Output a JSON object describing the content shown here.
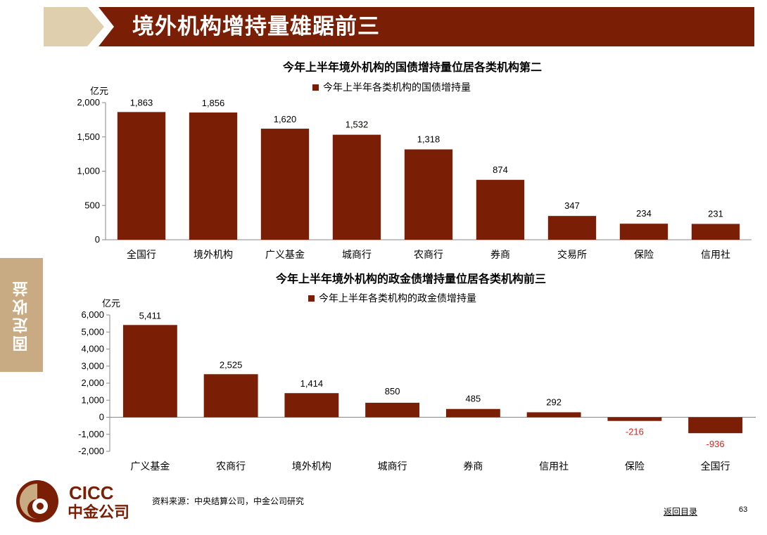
{
  "header": {
    "title": "境外机构增持量雄踞前三"
  },
  "side_tab": {
    "label": "固定收益"
  },
  "colors": {
    "brand": "#7a1e06",
    "bar": "#7a1e06",
    "tab": "#c9ab83",
    "chevron": "#e0cfaf",
    "negative_label": "#e0201b"
  },
  "chart_data": [
    {
      "type": "bar",
      "title": "今年上半年境外机构的国债增持量位居各类机构第二",
      "unit": "亿元",
      "legend": "今年上半年各类机构的国债增持量",
      "legend_position": "top-center",
      "categories": [
        "全国行",
        "境外机构",
        "广义基金",
        "城商行",
        "农商行",
        "券商",
        "交易所",
        "保险",
        "信用社"
      ],
      "values": [
        1863,
        1856,
        1620,
        1532,
        1318,
        874,
        347,
        234,
        231
      ],
      "value_labels": [
        "1,863",
        "1,856",
        "1,620",
        "1,532",
        "1,318",
        "874",
        "347",
        "234",
        "231"
      ],
      "ylim": [
        0,
        2000
      ],
      "yticks": [
        0,
        500,
        1000,
        1500,
        2000
      ],
      "ytick_labels": [
        "0",
        "500",
        "1,000",
        "1,500",
        "2,000"
      ],
      "grid": false
    },
    {
      "type": "bar",
      "title": "今年上半年境外机构的政金债增持量位居各类机构前三",
      "unit": "亿元",
      "legend": "今年上半年各类机构的政金债增持量",
      "legend_position": "top-center",
      "categories": [
        "广义基金",
        "农商行",
        "境外机构",
        "城商行",
        "券商",
        "信用社",
        "保险",
        "全国行"
      ],
      "values": [
        5411,
        2525,
        1414,
        850,
        485,
        292,
        -216,
        -936
      ],
      "value_labels": [
        "5,411",
        "2,525",
        "1,414",
        "850",
        "485",
        "292",
        "-216",
        "-936"
      ],
      "ylim": [
        -2000,
        6000
      ],
      "yticks": [
        -2000,
        -1000,
        0,
        1000,
        2000,
        3000,
        4000,
        5000,
        6000
      ],
      "ytick_labels": [
        "-2,000",
        "-1,000",
        "0",
        "1,000",
        "2,000",
        "3,000",
        "4,000",
        "5,000",
        "6,000"
      ],
      "grid": false
    }
  ],
  "logo": {
    "en": "CICC",
    "cn": "中金公司"
  },
  "footer": {
    "source": "资料来源：中央结算公司，中金公司研究",
    "back_link": "返回目录",
    "page_number": "63"
  }
}
